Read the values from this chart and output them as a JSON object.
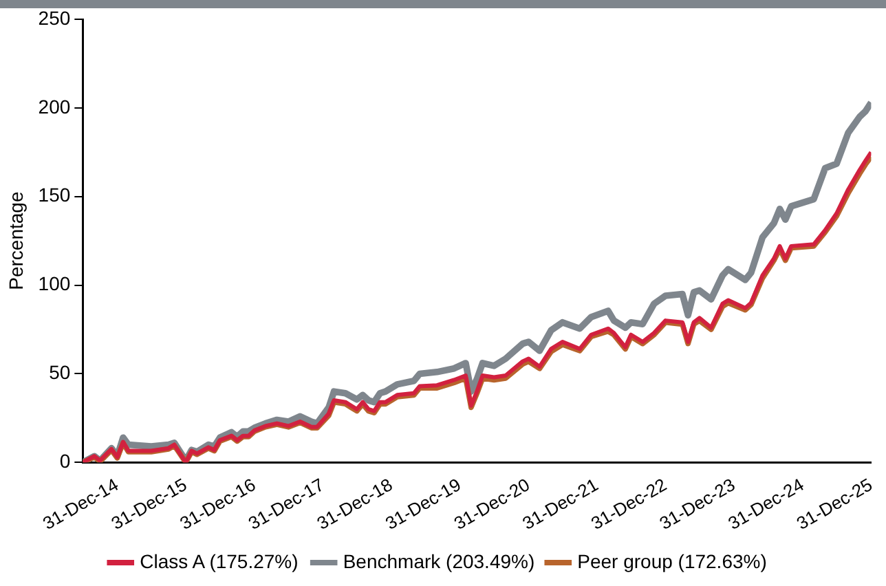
{
  "chart_data": {
    "type": "line",
    "ylabel": "Percentage",
    "legend": "bottom",
    "grid": false,
    "marker": "none",
    "line_style": "solid",
    "x": [
      "2014-06-30",
      "2014-08-31",
      "2014-09-30",
      "2014-11-30",
      "2014-12-31",
      "2015-01-31",
      "2015-02-28",
      "2015-06-30",
      "2015-09-30",
      "2015-10-31",
      "2015-12-31",
      "2016-01-31",
      "2016-02-29",
      "2016-04-30",
      "2016-05-31",
      "2016-06-30",
      "2016-08-31",
      "2016-09-30",
      "2016-10-31",
      "2016-11-30",
      "2016-12-31",
      "2017-02-28",
      "2017-04-30",
      "2017-06-30",
      "2017-08-31",
      "2017-10-31",
      "2017-11-30",
      "2018-01-31",
      "2018-02-28",
      "2018-04-30",
      "2018-06-30",
      "2018-07-31",
      "2018-08-31",
      "2018-09-30",
      "2018-10-31",
      "2018-11-30",
      "2019-01-31",
      "2019-04-30",
      "2019-05-31",
      "2019-08-31",
      "2019-11-30",
      "2020-01-31",
      "2020-02-29",
      "2020-03-31",
      "2020-04-30",
      "2020-06-30",
      "2020-08-31",
      "2020-11-30",
      "2020-12-31",
      "2021-02-28",
      "2021-04-30",
      "2021-06-30",
      "2021-09-30",
      "2021-11-30",
      "2022-02-28",
      "2022-03-31",
      "2022-05-31",
      "2022-06-30",
      "2022-08-31",
      "2022-10-31",
      "2022-12-31",
      "2023-03-31",
      "2023-04-30",
      "2023-05-31",
      "2023-06-30",
      "2023-08-31",
      "2023-10-31",
      "2023-11-30",
      "2024-02-29",
      "2024-03-31",
      "2024-05-31",
      "2024-07-31",
      "2024-08-31",
      "2024-09-30",
      "2024-10-31",
      "2025-02-28",
      "2025-04-30",
      "2025-06-30",
      "2025-08-31",
      "2025-10-31",
      "2025-11-30",
      "2025-12-31"
    ],
    "series": [
      {
        "name": "Class A (175.27%)",
        "color": "#d2213f",
        "values": [
          0,
          3.5,
          1,
          7.5,
          3,
          11.5,
          6.5,
          6.5,
          8,
          10,
          0,
          6.5,
          5,
          8.5,
          7,
          12.5,
          15,
          12.5,
          15,
          15,
          18,
          20.5,
          22,
          20.5,
          23,
          20,
          20,
          27.5,
          35,
          34,
          30,
          34,
          30,
          29,
          34,
          34,
          38,
          39,
          43,
          43.5,
          46.5,
          49,
          32,
          40,
          49,
          48,
          49,
          57,
          58.5,
          54,
          64,
          68,
          64,
          72,
          75.5,
          73,
          65,
          72,
          68,
          73,
          80,
          79,
          68,
          79,
          81.5,
          76,
          89.5,
          91.5,
          87,
          90,
          105.5,
          115,
          122,
          115,
          122,
          123,
          131,
          140.5,
          154,
          165,
          170,
          175
        ]
      },
      {
        "name": "Benchmark (203.49%)",
        "color": "#7f868d",
        "values": [
          0,
          3.5,
          1,
          8,
          3.5,
          14,
          10,
          9,
          10,
          11,
          1,
          7,
          6,
          10,
          9,
          14,
          17,
          14.5,
          17.5,
          17.5,
          19.5,
          22,
          24,
          23,
          26,
          23,
          22,
          31,
          40,
          39,
          35.5,
          38,
          35,
          34,
          39,
          40,
          44,
          46,
          50,
          51,
          53,
          56,
          40,
          47,
          56,
          54.5,
          58.5,
          67,
          68,
          63,
          74.5,
          79,
          75.5,
          82,
          85.5,
          80,
          76,
          79,
          78,
          89.5,
          94,
          95,
          83,
          96,
          97,
          92,
          105.5,
          109,
          103,
          107,
          127,
          135,
          143,
          137,
          144.5,
          148.5,
          166,
          168.5,
          186,
          195,
          198,
          203
        ]
      },
      {
        "name": "Peer group (172.63%)",
        "color": "#b8642c",
        "values": [
          0,
          3,
          0.5,
          7,
          2.5,
          11,
          6,
          6,
          7.5,
          9.5,
          0,
          6,
          4.5,
          8,
          6.5,
          12,
          14.5,
          12,
          14.5,
          14.5,
          17.5,
          20,
          21.5,
          20,
          22.5,
          19.5,
          19.5,
          26.5,
          34,
          33,
          29,
          33,
          29,
          28,
          33,
          33,
          37,
          38,
          42,
          42,
          45,
          47.5,
          31,
          39,
          47.5,
          46.5,
          47.5,
          55.5,
          57,
          53,
          62.5,
          66.5,
          63,
          71,
          74,
          72,
          64,
          71,
          67,
          72,
          79,
          78,
          67,
          78,
          80,
          75,
          88,
          90,
          86,
          89,
          104,
          114,
          120.5,
          114,
          121,
          122,
          130,
          139,
          152,
          163,
          168,
          172.5
        ]
      }
    ],
    "xlim": [
      "2014-06-30",
      "2025-12-31"
    ],
    "xticks": [
      {
        "value": "2014-12-31",
        "label": "31-Dec-14"
      },
      {
        "value": "2015-12-31",
        "label": "31-Dec-15"
      },
      {
        "value": "2016-12-31",
        "label": "31-Dec-16"
      },
      {
        "value": "2017-12-31",
        "label": "31-Dec-17"
      },
      {
        "value": "2018-12-31",
        "label": "31-Dec-18"
      },
      {
        "value": "2019-12-31",
        "label": "31-Dec-19"
      },
      {
        "value": "2020-12-31",
        "label": "31-Dec-20"
      },
      {
        "value": "2021-12-31",
        "label": "31-Dec-21"
      },
      {
        "value": "2022-12-31",
        "label": "31-Dec-22"
      },
      {
        "value": "2023-12-31",
        "label": "31-Dec-23"
      },
      {
        "value": "2024-12-31",
        "label": "31-Dec-24"
      },
      {
        "value": "2025-12-31",
        "label": "31-Dec-25"
      }
    ],
    "ylim": [
      0,
      250
    ],
    "yticks": [
      0,
      50,
      100,
      150,
      200,
      250
    ]
  }
}
